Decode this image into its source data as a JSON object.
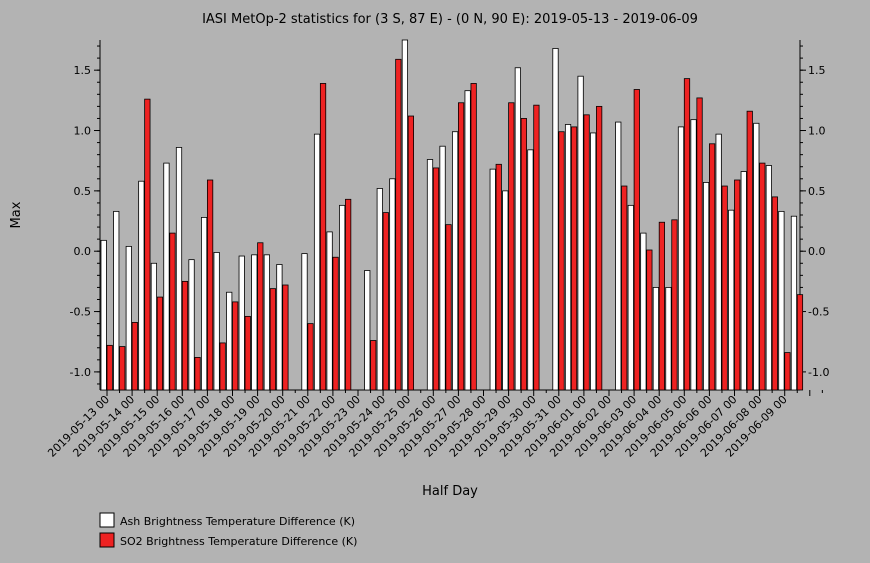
{
  "chart_data": {
    "type": "bar",
    "title": "IASI MetOp-2 statistics for (3 S, 87 E) - (0 N, 90 E): 2019-05-13 - 2019-06-09",
    "xlabel": "Half Day",
    "ylabel": "Max",
    "ylim": [
      -1.15,
      1.75
    ],
    "yticks": [
      1.5,
      1.0,
      0.5,
      0.0,
      -0.5,
      -1.0
    ],
    "ytick_labels": [
      "1.5",
      "1.0",
      "0.5",
      "0.0",
      "-0.5",
      "-1.0"
    ],
    "grid": false,
    "legend_position": "bottom-left",
    "x_tick_labels": [
      "2019-05-13 00",
      "2019-05-14 00",
      "2019-05-15 00",
      "2019-05-16 00",
      "2019-05-17 00",
      "2019-05-18 00",
      "2019-05-19 00",
      "2019-05-20 00",
      "2019-05-21 00",
      "2019-05-22 00",
      "2019-05-23 00",
      "2019-05-24 00",
      "2019-05-25 00",
      "2019-05-26 00",
      "2019-05-27 00",
      "2019-05-28 00",
      "2019-05-29 00",
      "2019-05-30 00",
      "2019-05-31 00",
      "2019-06-01 00",
      "2019-06-02 00",
      "2019-06-03 00",
      "2019-06-04 00",
      "2019-06-05 00",
      "2019-06-06 00",
      "2019-06-07 00",
      "2019-06-08 00",
      "2019-06-09 00"
    ],
    "series": [
      {
        "name": "Ash Brightness Temperature Difference (K)",
        "color": "#ffffff",
        "values": [
          0.09,
          0.33,
          0.04,
          0.58,
          -0.1,
          0.73,
          0.86,
          -0.07,
          0.28,
          -0.01,
          -0.34,
          -0.04,
          -0.03,
          -0.03,
          -0.11,
          null,
          -0.02,
          0.97,
          0.16,
          0.38,
          null,
          -0.16,
          0.52,
          0.6,
          1.75,
          null,
          0.76,
          0.87,
          0.99,
          1.33,
          null,
          0.68,
          0.5,
          1.52,
          0.84,
          null,
          1.68,
          1.05,
          1.45,
          0.98,
          null,
          1.07,
          0.38,
          0.15,
          -0.3,
          -0.3,
          1.03,
          1.09,
          0.57,
          0.97,
          0.34,
          0.66,
          1.06,
          0.71,
          0.33,
          0.29
        ]
      },
      {
        "name": "SO2 Brightness Temperature Difference (K)",
        "color": "#ee2222",
        "values": [
          -0.78,
          -0.79,
          -0.59,
          1.26,
          -0.38,
          0.15,
          -0.25,
          -0.88,
          0.59,
          -0.76,
          -0.42,
          -0.54,
          0.07,
          -0.31,
          -0.28,
          null,
          -0.6,
          1.39,
          -0.05,
          0.43,
          null,
          -0.74,
          0.32,
          1.59,
          1.12,
          null,
          0.69,
          0.22,
          1.23,
          1.39,
          null,
          0.72,
          1.23,
          1.1,
          1.21,
          null,
          0.99,
          1.03,
          1.13,
          1.2,
          null,
          0.54,
          1.34,
          0.01,
          0.24,
          0.26,
          1.43,
          1.27,
          0.89,
          0.54,
          0.59,
          1.16,
          0.73,
          0.45,
          -0.84,
          -0.36
        ]
      }
    ]
  }
}
